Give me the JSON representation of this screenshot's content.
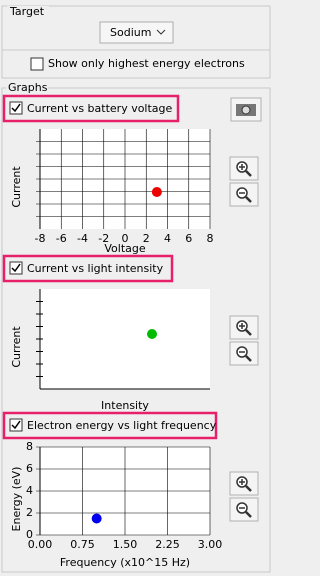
{
  "target": {
    "label": "Target",
    "selected": "Sodium"
  },
  "highest_energy": {
    "label": "Show only highest energy electrons",
    "checked": false
  },
  "graphs_label": "Graphs",
  "graphs": [
    {
      "title": "Current vs battery voltage",
      "checked": true,
      "x_label": "Voltage",
      "y_label": "Current",
      "xlim": [
        -8,
        8
      ],
      "xticks": [
        -8,
        -6,
        -4,
        -2,
        0,
        2,
        4,
        6,
        8
      ],
      "point": {
        "x": 3
      },
      "color": "#ee0000"
    },
    {
      "title": "Current vs light intensity",
      "checked": true,
      "x_label": "Intensity",
      "y_label": "Current",
      "color": "#00bb00"
    },
    {
      "title": "Electron energy vs light frequency",
      "checked": true,
      "x_label": "Frequency (x10^15 Hz)",
      "y_label": "Energy (eV)",
      "xlim": [
        0,
        3
      ],
      "xticks": [
        {
          "value": 0,
          "label": "0.00"
        },
        {
          "value": 0.75,
          "label": "0.75"
        },
        {
          "value": 1.5,
          "label": "1.50"
        },
        {
          "value": 2.25,
          "label": "2.25"
        },
        {
          "value": 3,
          "label": "3.00"
        }
      ],
      "ylim": [
        0,
        8
      ],
      "yticks": [
        0,
        2,
        4,
        6,
        8
      ],
      "point": {
        "x": 1.0,
        "y": 1.5
      },
      "color": "#0000ee"
    }
  ]
}
